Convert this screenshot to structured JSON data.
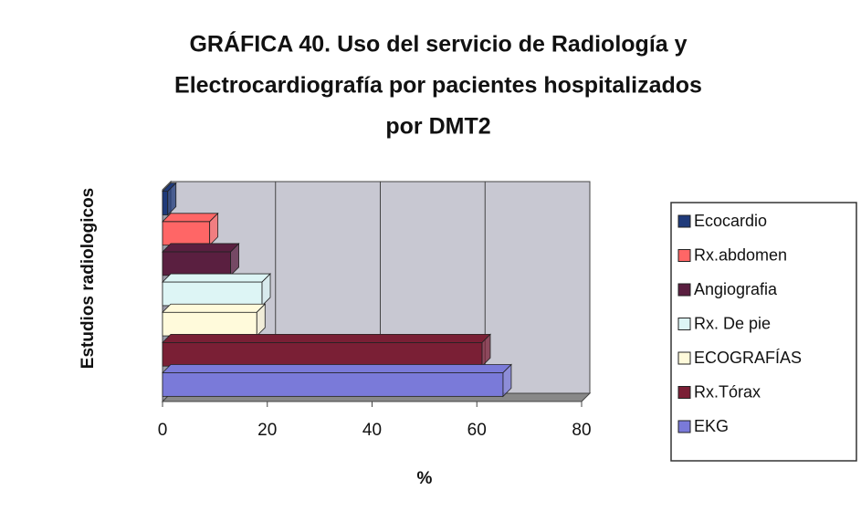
{
  "chart_data": {
    "type": "bar",
    "orientation": "horizontal",
    "title": [
      "GRÁFICA 40. Uso del servicio de Radiología y",
      "Electrocardiografía por pacientes hospitalizados",
      "por DMT2"
    ],
    "y_label": "Estudios radiologicos",
    "x_label": "%",
    "categories": [
      null
    ],
    "series": [
      {
        "name": "Ecocardio",
        "color": "#1f3a7a",
        "values": [
          1
        ]
      },
      {
        "name": "Rx.abdomen",
        "color": "#ff6666",
        "values": [
          9
        ]
      },
      {
        "name": "Angiografia",
        "color": "#5a1f40",
        "values": [
          13
        ]
      },
      {
        "name": "Rx. De pie",
        "color": "#ddf5f5",
        "values": [
          19
        ]
      },
      {
        "name": "ECOGRAFÍAS",
        "color": "#fffadb",
        "values": [
          18
        ]
      },
      {
        "name": "Rx.Tórax",
        "color": "#7a1f35",
        "values": [
          61
        ]
      },
      {
        "name": "EKG",
        "color": "#7a7ad9",
        "values": [
          65
        ]
      }
    ],
    "xlim": [
      0,
      80
    ],
    "xticks": [
      0,
      20,
      40,
      60,
      80
    ],
    "grid": true,
    "legend": "right"
  }
}
